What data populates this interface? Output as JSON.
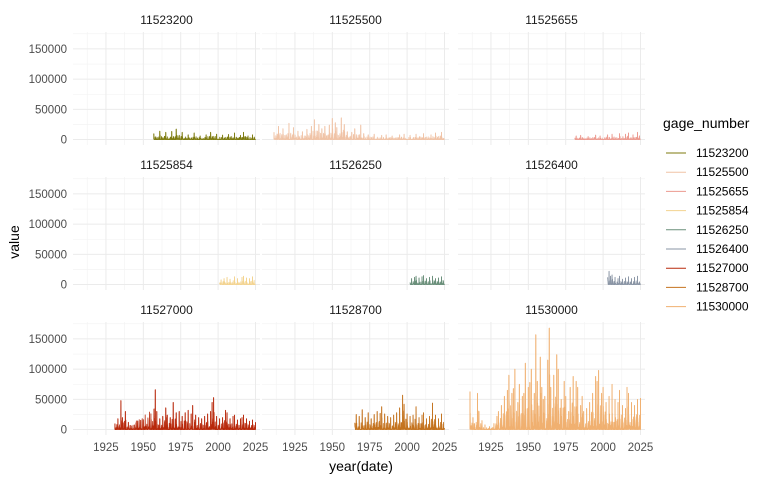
{
  "chart_data": {
    "type": "line",
    "facet_by": "gage_number",
    "xlabel": "year(date)",
    "ylabel": "value",
    "x_ticks": [
      1925,
      1950,
      1975,
      2000,
      2025
    ],
    "y_ticks": [
      0,
      50000,
      100000,
      150000
    ],
    "x_tick_labels": [
      "1925",
      "1950",
      "1975",
      "2000",
      "2025"
    ],
    "y_tick_labels": [
      "0",
      "50000",
      "100000",
      "150000"
    ],
    "xlim": [
      1903,
      2028
    ],
    "ylim": [
      -9000,
      178000
    ],
    "grid": true,
    "legend": {
      "title": "gage_number",
      "position": "right"
    },
    "series": [
      {
        "name": "11523200",
        "color": "#7c7a0e",
        "start": 1957,
        "end": 2025,
        "peaks": [
          [
            1957,
            10000
          ],
          [
            1961,
            14000
          ],
          [
            1965,
            12000
          ],
          [
            1969,
            13500
          ],
          [
            1972,
            17500
          ],
          [
            1976,
            12000
          ],
          [
            1980,
            8000
          ],
          [
            1984,
            11000
          ],
          [
            1988,
            6000
          ],
          [
            1992,
            8000
          ],
          [
            1995,
            12000
          ],
          [
            1999,
            9000
          ],
          [
            2003,
            7500
          ],
          [
            2007,
            8500
          ],
          [
            2011,
            11000
          ],
          [
            2015,
            7000
          ],
          [
            2017,
            12000
          ],
          [
            2020,
            6000
          ],
          [
            2023,
            8000
          ]
        ]
      },
      {
        "name": "11525500",
        "color": "#f0c3a6",
        "start": 1911,
        "end": 2025,
        "peaks": [
          [
            1911,
            12000
          ],
          [
            1914,
            22000
          ],
          [
            1917,
            18000
          ],
          [
            1921,
            27000
          ],
          [
            1924,
            20000
          ],
          [
            1927,
            14000
          ],
          [
            1930,
            13000
          ],
          [
            1933,
            17000
          ],
          [
            1936,
            22000
          ],
          [
            1938,
            33000
          ],
          [
            1941,
            25000
          ],
          [
            1943,
            18000
          ],
          [
            1945,
            22000
          ],
          [
            1948,
            24000
          ],
          [
            1950,
            35000
          ],
          [
            1952,
            28000
          ],
          [
            1953,
            20000
          ],
          [
            1956,
            36000
          ],
          [
            1958,
            25000
          ],
          [
            1960,
            13000
          ],
          [
            1963,
            12000
          ],
          [
            1965,
            18000
          ],
          [
            1969,
            24000
          ],
          [
            1971,
            10000
          ],
          [
            1974,
            8000
          ],
          [
            1978,
            9000
          ],
          [
            1983,
            7000
          ],
          [
            1986,
            8000
          ],
          [
            1990,
            6000
          ],
          [
            1995,
            8000
          ],
          [
            1998,
            9000
          ],
          [
            2002,
            7000
          ],
          [
            2006,
            9000
          ],
          [
            2011,
            10000
          ],
          [
            2016,
            8000
          ],
          [
            2019,
            11000
          ],
          [
            2023,
            12000
          ]
        ]
      },
      {
        "name": "11525655",
        "color": "#ec9a8f",
        "start": 1981,
        "end": 2025,
        "peaks": [
          [
            1982,
            6000
          ],
          [
            1985,
            7000
          ],
          [
            1990,
            5000
          ],
          [
            1995,
            7500
          ],
          [
            1998,
            6000
          ],
          [
            2003,
            8000
          ],
          [
            2006,
            9000
          ],
          [
            2011,
            10000
          ],
          [
            2015,
            9000
          ],
          [
            2017,
            11000
          ],
          [
            2020,
            8000
          ],
          [
            2023,
            12000
          ]
        ]
      },
      {
        "name": "11525854",
        "color": "#f3d38f",
        "start": 2001,
        "end": 2025,
        "peaks": [
          [
            2002,
            8000
          ],
          [
            2004,
            10000
          ],
          [
            2006,
            12000
          ],
          [
            2008,
            9000
          ],
          [
            2011,
            13000
          ],
          [
            2013,
            10000
          ],
          [
            2016,
            12000
          ],
          [
            2017,
            14000
          ],
          [
            2019,
            11000
          ],
          [
            2021,
            10000
          ],
          [
            2023,
            13000
          ]
        ]
      },
      {
        "name": "11526250",
        "color": "#6a8f7a",
        "start": 2002,
        "end": 2025,
        "peaks": [
          [
            2003,
            10000
          ],
          [
            2005,
            12000
          ],
          [
            2006,
            14000
          ],
          [
            2008,
            11000
          ],
          [
            2010,
            13000
          ],
          [
            2011,
            15000
          ],
          [
            2013,
            10000
          ],
          [
            2015,
            12000
          ],
          [
            2017,
            14000
          ],
          [
            2019,
            10000
          ],
          [
            2021,
            11000
          ],
          [
            2023,
            13000
          ]
        ]
      },
      {
        "name": "11526400",
        "color": "#8a95a5",
        "start": 2003,
        "end": 2025,
        "peaks": [
          [
            2004,
            22000
          ],
          [
            2005,
            14000
          ],
          [
            2006,
            16000
          ],
          [
            2008,
            12000
          ],
          [
            2010,
            10000
          ],
          [
            2011,
            14000
          ],
          [
            2013,
            9000
          ],
          [
            2015,
            11000
          ],
          [
            2017,
            13000
          ],
          [
            2019,
            10000
          ],
          [
            2021,
            12000
          ],
          [
            2023,
            14000
          ]
        ]
      },
      {
        "name": "11527000",
        "color": "#b8290c",
        "start": 1931,
        "end": 2025,
        "peaks": [
          [
            1931,
            10000
          ],
          [
            1933,
            18000
          ],
          [
            1935,
            48000
          ],
          [
            1936,
            20000
          ],
          [
            1938,
            30000
          ],
          [
            1940,
            12000
          ],
          [
            1958,
            66000
          ],
          [
            1959,
            30000
          ],
          [
            1961,
            18000
          ],
          [
            1963,
            22000
          ],
          [
            1965,
            36000
          ],
          [
            1966,
            24000
          ],
          [
            1968,
            20000
          ],
          [
            1970,
            45000
          ],
          [
            1972,
            28000
          ],
          [
            1974,
            30000
          ],
          [
            1976,
            22000
          ],
          [
            1978,
            28000
          ],
          [
            1980,
            32000
          ],
          [
            1982,
            26000
          ],
          [
            1983,
            40000
          ],
          [
            1985,
            24000
          ],
          [
            1987,
            20000
          ],
          [
            1989,
            18000
          ],
          [
            1991,
            22000
          ],
          [
            1993,
            26000
          ],
          [
            1995,
            30000
          ],
          [
            1996,
            45000
          ],
          [
            1997,
            53000
          ],
          [
            1999,
            22000
          ],
          [
            2001,
            18000
          ],
          [
            2003,
            20000
          ],
          [
            2005,
            32000
          ],
          [
            2006,
            28000
          ],
          [
            2008,
            18000
          ],
          [
            2010,
            22000
          ],
          [
            2011,
            24000
          ],
          [
            2013,
            16000
          ],
          [
            2015,
            18000
          ],
          [
            2016,
            20000
          ],
          [
            2017,
            24000
          ],
          [
            2019,
            18000
          ],
          [
            2021,
            14000
          ],
          [
            2023,
            16000
          ],
          [
            2025,
            12000
          ]
        ]
      },
      {
        "name": "11528700",
        "color": "#c4731f",
        "start": 1965,
        "end": 2025,
        "peaks": [
          [
            1966,
            25000
          ],
          [
            1968,
            22000
          ],
          [
            1970,
            33000
          ],
          [
            1972,
            20000
          ],
          [
            1974,
            28000
          ],
          [
            1976,
            18000
          ],
          [
            1978,
            25000
          ],
          [
            1980,
            30000
          ],
          [
            1982,
            27000
          ],
          [
            1983,
            38000
          ],
          [
            1985,
            26000
          ],
          [
            1987,
            22000
          ],
          [
            1989,
            20000
          ],
          [
            1991,
            24000
          ],
          [
            1993,
            28000
          ],
          [
            1995,
            36000
          ],
          [
            1997,
            57000
          ],
          [
            1998,
            42000
          ],
          [
            2000,
            26000
          ],
          [
            2002,
            22000
          ],
          [
            2004,
            24000
          ],
          [
            2006,
            38000
          ],
          [
            2008,
            20000
          ],
          [
            2010,
            24000
          ],
          [
            2011,
            28000
          ],
          [
            2013,
            18000
          ],
          [
            2015,
            22000
          ],
          [
            2017,
            44000
          ],
          [
            2019,
            24000
          ],
          [
            2021,
            18000
          ],
          [
            2023,
            26000
          ]
        ]
      },
      {
        "name": "11530000",
        "color": "#f0b070",
        "start": 1911,
        "end": 2025,
        "peaks": [
          [
            1911,
            63000
          ],
          [
            1913,
            20000
          ],
          [
            1914,
            10000
          ],
          [
            1916,
            60000
          ],
          [
            1917,
            30000
          ],
          [
            1919,
            15000
          ],
          [
            1921,
            8000
          ],
          [
            1924,
            5000
          ],
          [
            1927,
            10000
          ],
          [
            1929,
            22000
          ],
          [
            1930,
            30000
          ],
          [
            1932,
            40000
          ],
          [
            1934,
            55000
          ],
          [
            1936,
            65000
          ],
          [
            1937,
            90000
          ],
          [
            1939,
            60000
          ],
          [
            1940,
            68000
          ],
          [
            1941,
            100000
          ],
          [
            1943,
            45000
          ],
          [
            1944,
            75000
          ],
          [
            1946,
            55000
          ],
          [
            1947,
            60000
          ],
          [
            1948,
            110000
          ],
          [
            1950,
            70000
          ],
          [
            1951,
            78000
          ],
          [
            1952,
            100000
          ],
          [
            1954,
            60000
          ],
          [
            1955,
            157000
          ],
          [
            1956,
            80000
          ],
          [
            1958,
            120000
          ],
          [
            1959,
            70000
          ],
          [
            1960,
            50000
          ],
          [
            1961,
            55000
          ],
          [
            1963,
            115000
          ],
          [
            1964,
            168000
          ],
          [
            1965,
            70000
          ],
          [
            1967,
            90000
          ],
          [
            1969,
            124000
          ],
          [
            1970,
            100000
          ],
          [
            1972,
            50000
          ],
          [
            1974,
            80000
          ],
          [
            1975,
            55000
          ],
          [
            1977,
            30000
          ],
          [
            1978,
            70000
          ],
          [
            1980,
            88000
          ],
          [
            1982,
            80000
          ],
          [
            1983,
            70000
          ],
          [
            1985,
            40000
          ],
          [
            1986,
            55000
          ],
          [
            1987,
            30000
          ],
          [
            1989,
            35000
          ],
          [
            1991,
            45000
          ],
          [
            1993,
            60000
          ],
          [
            1995,
            88000
          ],
          [
            1996,
            80000
          ],
          [
            1997,
            98000
          ],
          [
            1999,
            60000
          ],
          [
            2000,
            70000
          ],
          [
            2002,
            45000
          ],
          [
            2004,
            55000
          ],
          [
            2006,
            75000
          ],
          [
            2008,
            50000
          ],
          [
            2010,
            45000
          ],
          [
            2011,
            65000
          ],
          [
            2013,
            40000
          ],
          [
            2015,
            35000
          ],
          [
            2016,
            70000
          ],
          [
            2017,
            60000
          ],
          [
            2019,
            45000
          ],
          [
            2021,
            40000
          ],
          [
            2023,
            50000
          ],
          [
            2025,
            52000
          ]
        ]
      }
    ]
  }
}
